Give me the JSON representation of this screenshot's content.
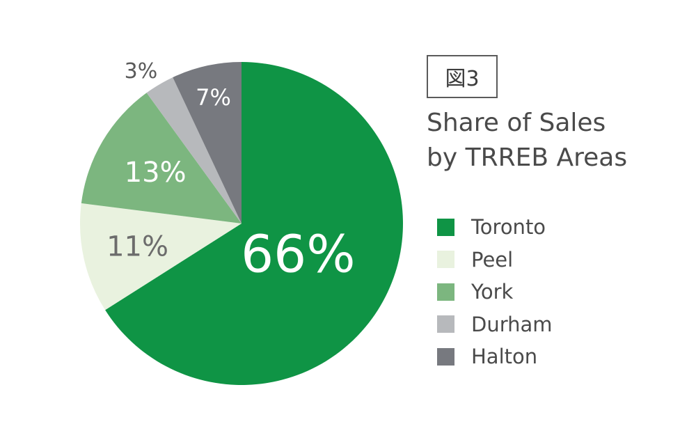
{
  "figure_label": "図3",
  "chart_data": {
    "type": "pie",
    "title_line1": "Share of Sales",
    "title_line2": "by TRREB Areas",
    "legend_position": "right",
    "start": "top, clockwise",
    "slices": [
      {
        "name": "Toronto",
        "value": 66,
        "label": "66%",
        "color": "#0f9445",
        "text_color": "#ffffff"
      },
      {
        "name": "Peel",
        "value": 11,
        "label": "11%",
        "color": "#e9f2df",
        "text_color": "#6c6c6c"
      },
      {
        "name": "York",
        "value": 13,
        "label": "13%",
        "color": "#7cb67f",
        "text_color": "#ffffff"
      },
      {
        "name": "Durham",
        "value": 3,
        "label": "3%",
        "color": "#b7b9bc",
        "text_color": "#5a5a5a"
      },
      {
        "name": "Halton",
        "value": 7,
        "label": "7%",
        "color": "#77797f",
        "text_color": "#ffffff"
      }
    ]
  }
}
